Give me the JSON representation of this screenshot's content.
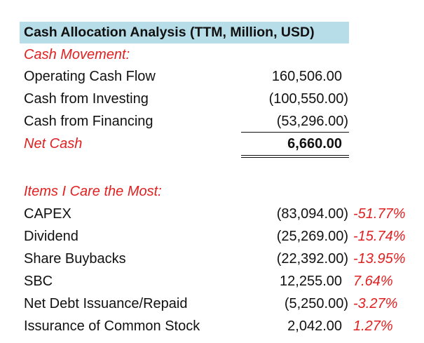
{
  "title": "Cash Allocation Analysis (TTM, Million, USD)",
  "cash_movement": {
    "heading": "Cash Movement:",
    "rows": [
      {
        "label": "Operating Cash Flow",
        "value": "160,506.00"
      },
      {
        "label": "Cash from Investing",
        "value": "(100,550.00)"
      },
      {
        "label": "Cash from Financing",
        "value": "(53,296.00)"
      }
    ],
    "net_label": "Net Cash",
    "net_value": "6,660.00"
  },
  "items": {
    "heading": "Items I Care the Most:",
    "rows": [
      {
        "label": "CAPEX",
        "value": "(83,094.00)",
        "pct": "-51.77%"
      },
      {
        "label": "Dividend",
        "value": "(25,269.00)",
        "pct": "-15.74%"
      },
      {
        "label": "Share Buybacks",
        "value": "(22,392.00)",
        "pct": "-13.95%"
      },
      {
        "label": "SBC",
        "value": "12,255.00",
        "pct": "7.64%"
      },
      {
        "label": "Net Debt Issuance/Repaid",
        "value": "(5,250.00)",
        "pct": "-3.27%"
      },
      {
        "label": "Issurance of Common Stock",
        "value": "2,042.00",
        "pct": "1.27%"
      }
    ]
  },
  "colors": {
    "title_background": "#b7dde8",
    "accent_red": "#e02020",
    "text": "#111111"
  }
}
